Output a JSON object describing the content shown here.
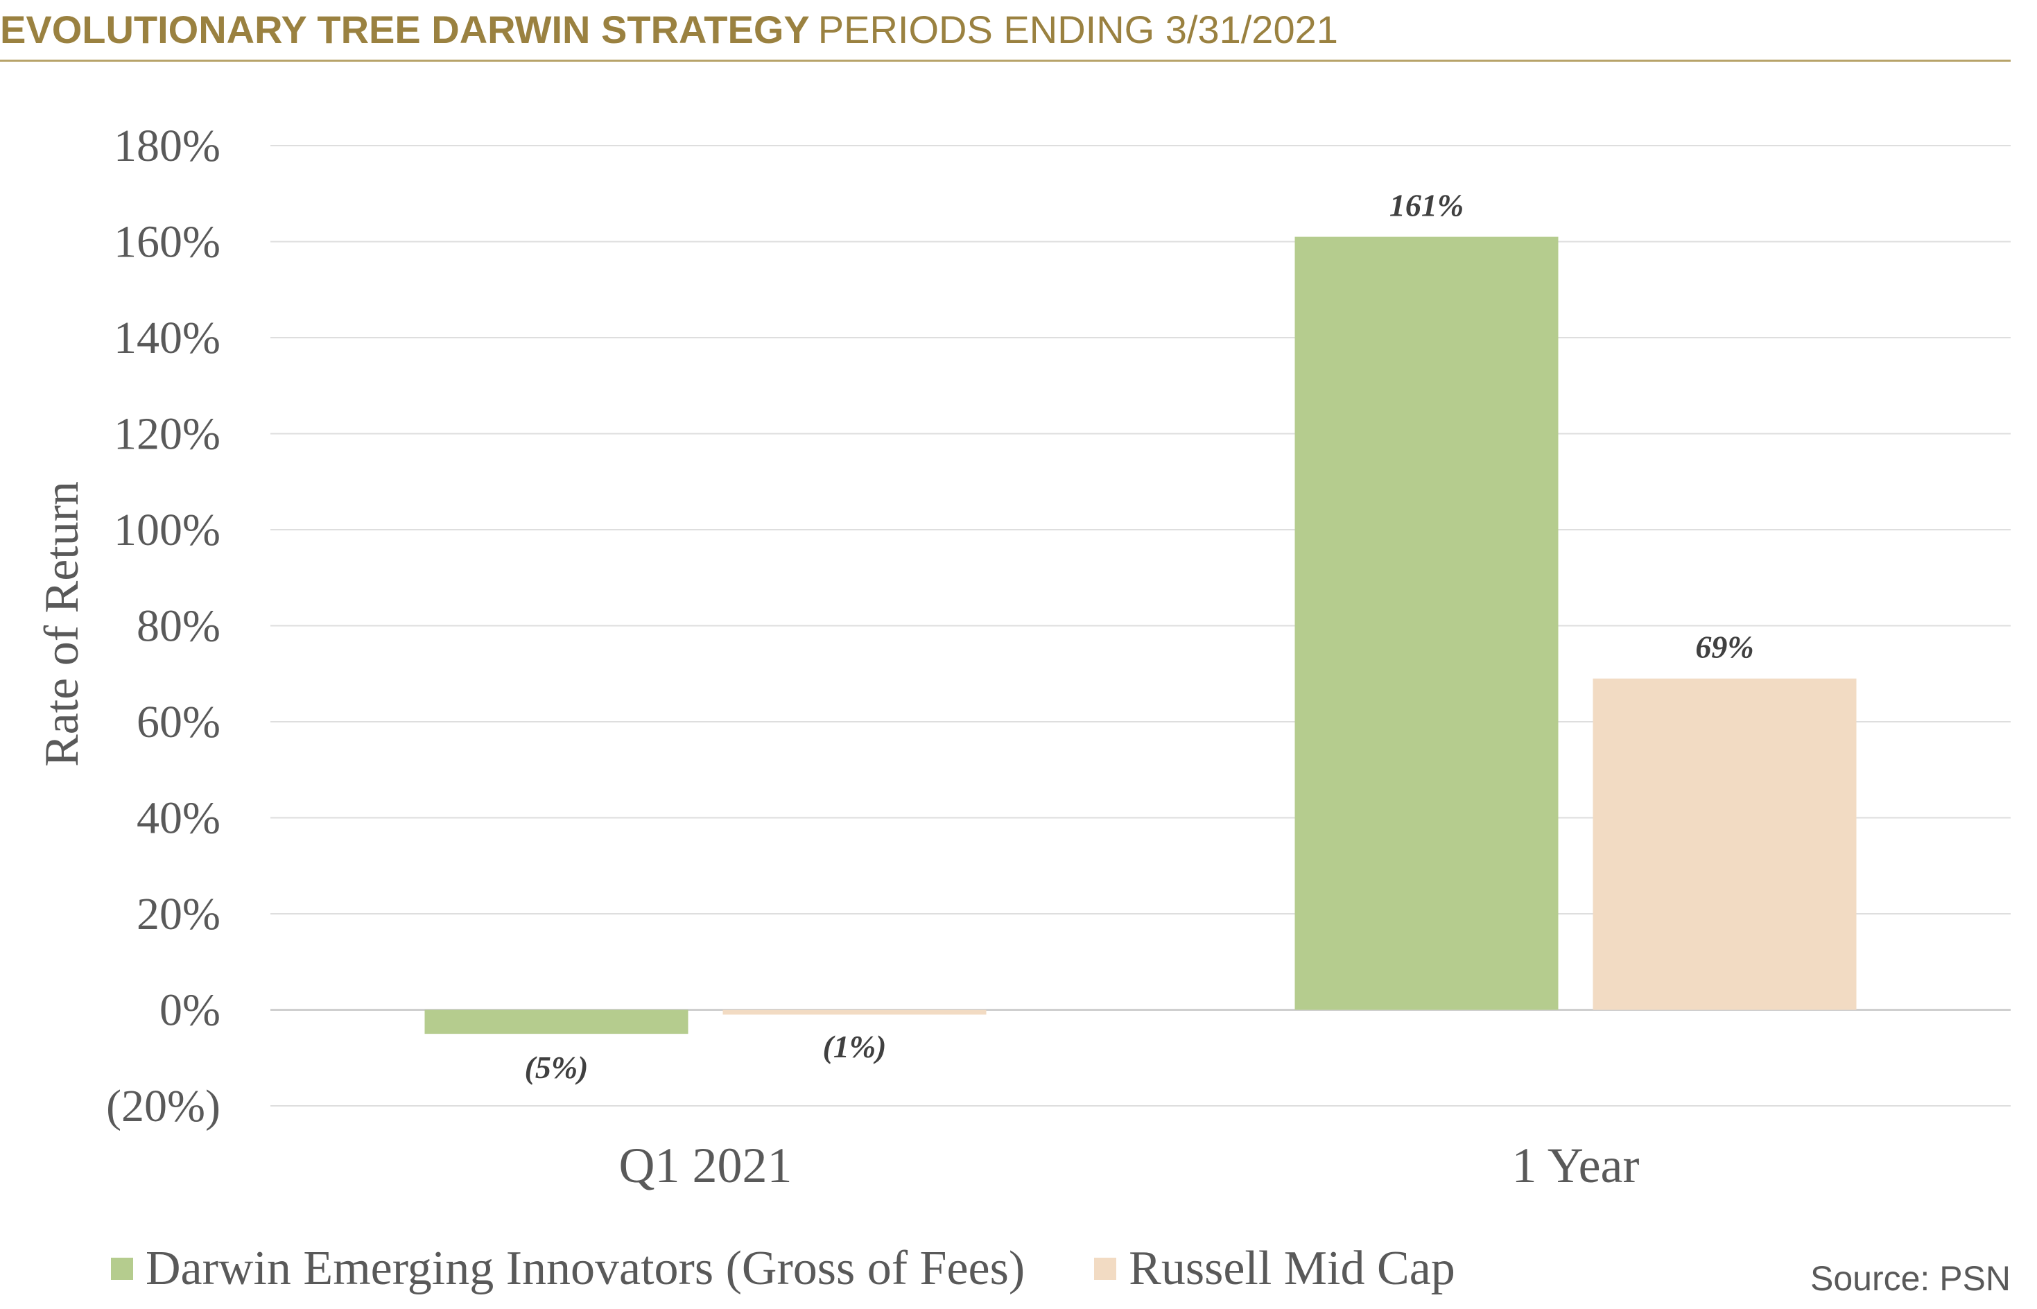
{
  "header": {
    "title_bold": "EVOLUTIONARY TREE DARWIN STRATEGY",
    "title_light": "PERIODS ENDING 3/31/2021",
    "accent_color": "#9a8140"
  },
  "chart_data": {
    "type": "bar",
    "title": "",
    "xlabel": "",
    "ylabel": "Rate of Return",
    "ylim": [
      -20,
      180
    ],
    "yticks": [
      -20,
      0,
      20,
      40,
      60,
      80,
      100,
      120,
      140,
      160,
      180
    ],
    "ytick_labels": [
      "(20%)",
      "0%",
      "20%",
      "40%",
      "60%",
      "80%",
      "100%",
      "120%",
      "140%",
      "160%",
      "180%"
    ],
    "grid": true,
    "legend_position": "bottom",
    "categories": [
      "Q1 2021",
      "1 Year"
    ],
    "series": [
      {
        "name": "Darwin Emerging Innovators (Gross of Fees)",
        "values": [
          -5,
          161
        ],
        "labels": [
          "(5%)",
          "161%"
        ],
        "color": "#b5cc8e"
      },
      {
        "name": "Russell Mid Cap",
        "values": [
          -1,
          69
        ],
        "labels": [
          "(1%)",
          "69%"
        ],
        "color": "#f2dbc3"
      }
    ]
  },
  "source": "Source: PSN"
}
